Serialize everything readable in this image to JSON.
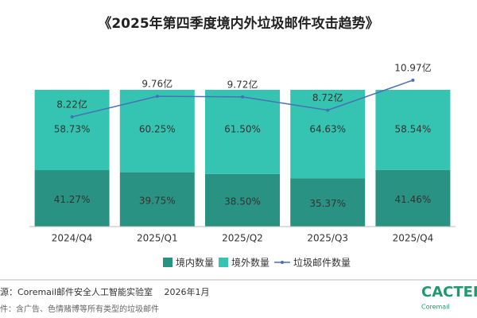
{
  "chart_data": {
    "type": "bar",
    "title": "《2025年第四季度境内外垃圾邮件攻击趋势》",
    "categories": [
      "2024/Q4",
      "2025/Q1",
      "2025/Q2",
      "2025/Q3",
      "2025/Q4"
    ],
    "series": [
      {
        "name": "境内数量",
        "color": "#2a9283",
        "values": [
          41.27,
          39.75,
          38.5,
          35.37,
          41.46
        ],
        "value_labels": [
          "41.27%",
          "39.75%",
          "38.50%",
          "35.37%",
          "41.46%"
        ]
      },
      {
        "name": "境外数量",
        "color": "#34c4b1",
        "values": [
          58.73,
          60.25,
          61.5,
          64.63,
          58.54
        ],
        "value_labels": [
          "58.73%",
          "60.25%",
          "61.50%",
          "64.63%",
          "58.54%"
        ]
      },
      {
        "name": "垃圾邮件数量",
        "type": "line",
        "axis": "y2",
        "color": "#4a6fb8",
        "values": [
          8.22,
          9.76,
          9.72,
          8.72,
          10.97
        ],
        "value_labels": [
          "8.22亿",
          "9.76亿",
          "9.72亿",
          "8.72亿",
          "10.97亿"
        ]
      }
    ],
    "ylim": [
      0,
      100
    ],
    "y2lim": [
      0,
      14
    ],
    "stacked": true,
    "source": "源：Coremail邮件安全人工智能实验室　 2026年1月",
    "note": "件：含广告、色情赌博等所有类型的垃圾邮件",
    "logo": "CACTER",
    "logo_sub": "Coremail"
  }
}
